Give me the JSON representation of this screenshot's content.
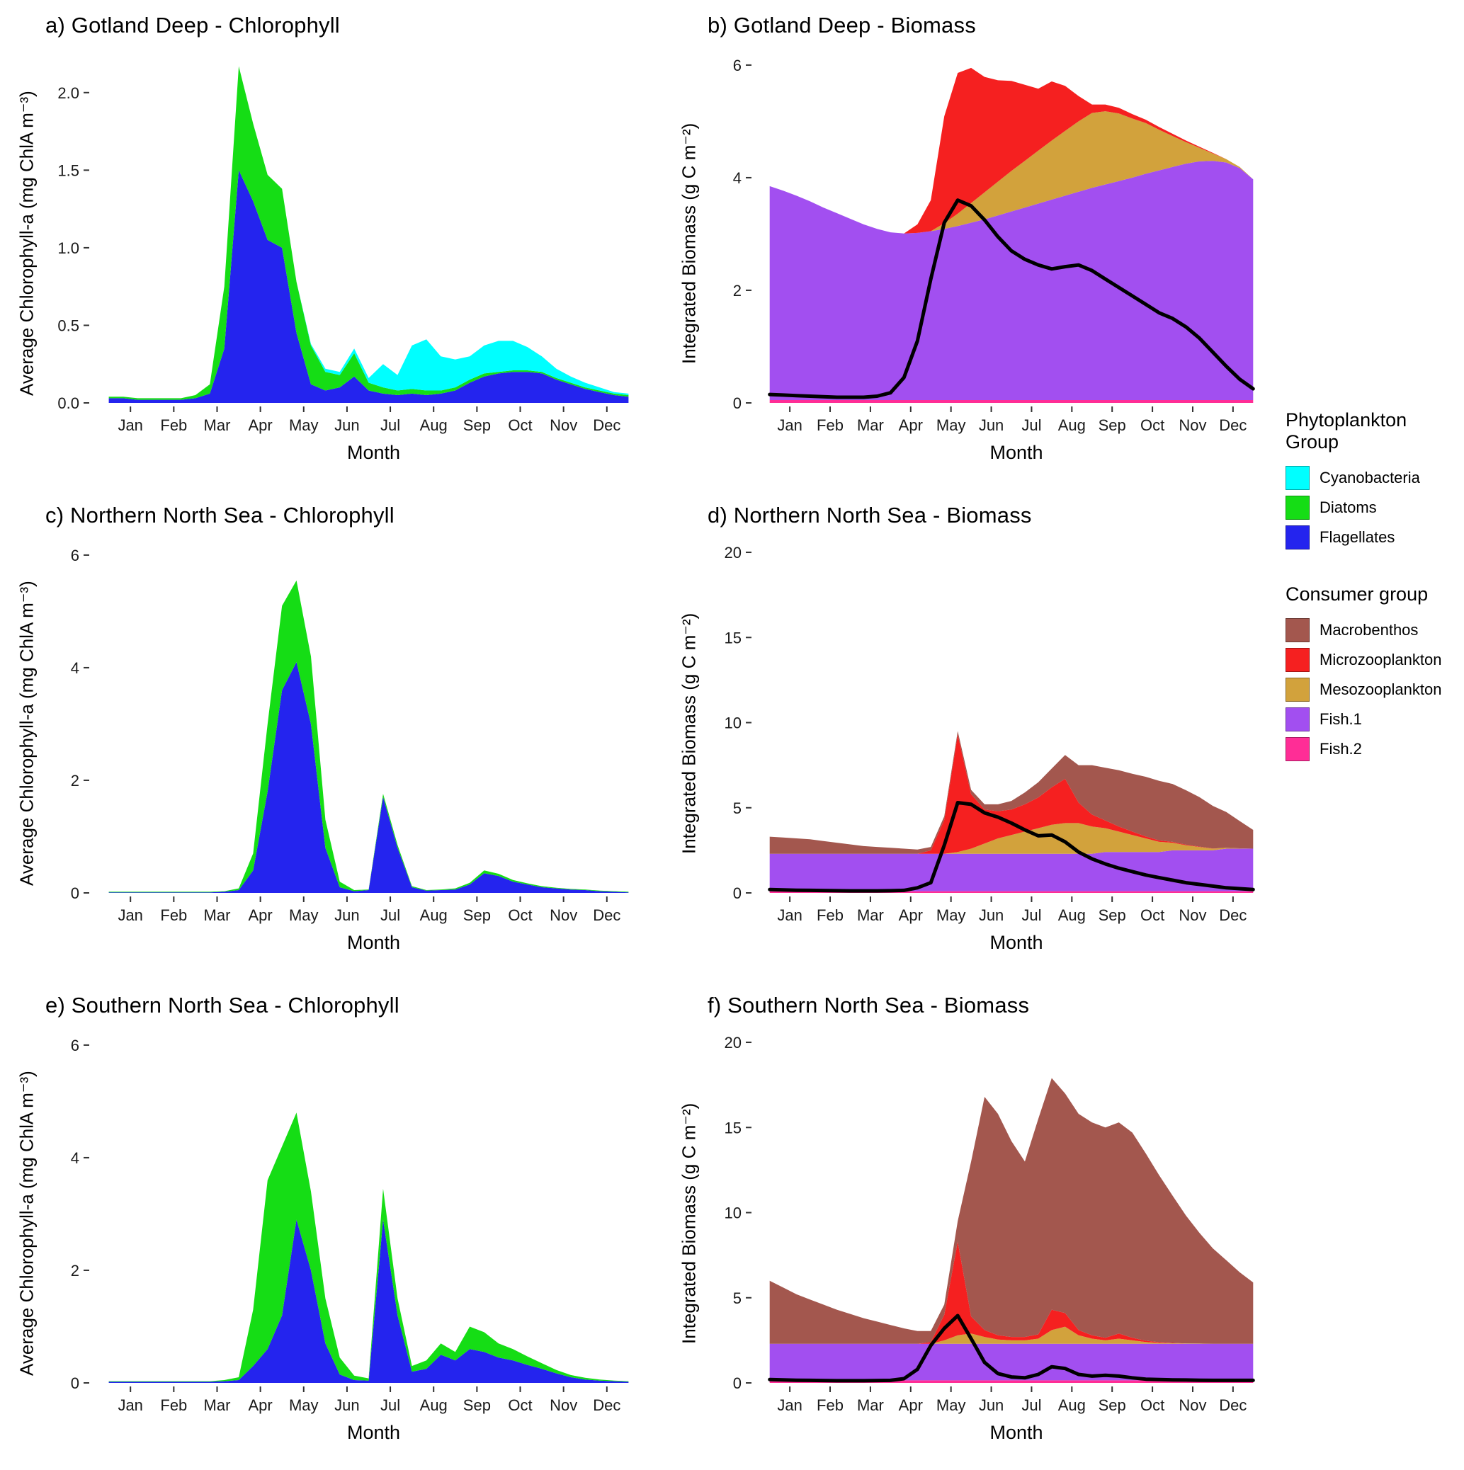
{
  "xlabel": "Month",
  "months": [
    "Jan",
    "Feb",
    "Mar",
    "Apr",
    "May",
    "Jun",
    "Jul",
    "Aug",
    "Sep",
    "Oct",
    "Nov",
    "Dec"
  ],
  "legend": {
    "phyto_title": "Phytoplankton Group",
    "phyto_items": [
      {
        "label": "Cyanobacteria",
        "color": "#00ffff"
      },
      {
        "label": "Diatoms",
        "color": "#15dd15"
      },
      {
        "label": "Flagellates",
        "color": "#2424ee"
      }
    ],
    "consumer_title": "Consumer group",
    "consumer_items": [
      {
        "label": "Macrobenthos",
        "color": "#a3574e"
      },
      {
        "label": "Microzooplankton",
        "color": "#f52020"
      },
      {
        "label": "Mesozooplankton",
        "color": "#d2a23c"
      },
      {
        "label": "Fish.1",
        "color": "#a24ff0"
      },
      {
        "label": "Fish.2",
        "color": "#ff2d96"
      }
    ]
  },
  "chart_data": [
    {
      "id": "a",
      "type": "area",
      "title": "a) Gotland Deep - Chlorophyll",
      "ylabel": "Average Chlorophyll-a (mg ChlA m⁻³)",
      "n_points": 37,
      "x_range_months": [
        0,
        12
      ],
      "ymax": 2.25,
      "yticks": [
        0,
        0.5,
        1,
        1.5,
        2
      ],
      "ytick_labels": [
        "0.0",
        "0.5",
        "1.0",
        "1.5",
        "2.0"
      ],
      "series": [
        {
          "name": "Flagellates",
          "color": "#2424ee",
          "values": [
            0.03,
            0.03,
            0.02,
            0.02,
            0.02,
            0.02,
            0.03,
            0.06,
            0.35,
            1.5,
            1.3,
            1.05,
            1.0,
            0.45,
            0.12,
            0.08,
            0.1,
            0.17,
            0.08,
            0.06,
            0.05,
            0.06,
            0.05,
            0.06,
            0.08,
            0.13,
            0.17,
            0.19,
            0.2,
            0.2,
            0.19,
            0.15,
            0.12,
            0.09,
            0.07,
            0.05,
            0.04
          ]
        },
        {
          "name": "Diatoms",
          "color": "#15dd15",
          "values": [
            0.01,
            0.01,
            0.01,
            0.01,
            0.01,
            0.01,
            0.02,
            0.06,
            0.4,
            0.67,
            0.5,
            0.42,
            0.38,
            0.33,
            0.25,
            0.12,
            0.08,
            0.15,
            0.05,
            0.04,
            0.03,
            0.03,
            0.03,
            0.02,
            0.02,
            0.02,
            0.02,
            0.01,
            0.01,
            0.01,
            0.01,
            0.01,
            0.01,
            0.01,
            0.01,
            0.01,
            0.01
          ]
        },
        {
          "name": "Cyanobacteria",
          "color": "#00ffff",
          "values": [
            0,
            0,
            0,
            0,
            0,
            0,
            0,
            0,
            0,
            0,
            0,
            0,
            0,
            0,
            0.01,
            0.02,
            0.02,
            0.03,
            0.03,
            0.15,
            0.1,
            0.28,
            0.33,
            0.22,
            0.18,
            0.15,
            0.18,
            0.2,
            0.19,
            0.15,
            0.1,
            0.06,
            0.04,
            0.03,
            0.02,
            0.01,
            0.01
          ]
        }
      ]
    },
    {
      "id": "b",
      "type": "area",
      "title": "b) Gotland Deep - Biomass",
      "ylabel": "Integrated Biomass (g C m⁻²)",
      "n_points": 37,
      "x_range_months": [
        0,
        12
      ],
      "ymax": 6.2,
      "yticks": [
        0,
        2,
        4,
        6
      ],
      "ytick_labels": [
        "0",
        "2",
        "4",
        "6"
      ],
      "series": [
        {
          "name": "Fish.2",
          "color": "#ff2d96",
          "values": 0.05
        },
        {
          "name": "Fish.1",
          "color": "#a24ff0",
          "values": [
            3.8,
            3.72,
            3.63,
            3.53,
            3.42,
            3.32,
            3.22,
            3.12,
            3.04,
            2.98,
            2.96,
            2.97,
            3.0,
            3.04,
            3.09,
            3.15,
            3.21,
            3.28,
            3.35,
            3.42,
            3.49,
            3.56,
            3.63,
            3.7,
            3.77,
            3.83,
            3.89,
            3.95,
            4.02,
            4.08,
            4.14,
            4.2,
            4.24,
            4.25,
            4.22,
            4.12,
            3.92
          ]
        },
        {
          "name": "Mesozooplankton",
          "color": "#d2a23c",
          "values": [
            0,
            0,
            0,
            0,
            0,
            0,
            0,
            0,
            0,
            0,
            0,
            0,
            0,
            0.1,
            0.22,
            0.35,
            0.48,
            0.6,
            0.72,
            0.83,
            0.94,
            1.05,
            1.15,
            1.25,
            1.33,
            1.3,
            1.2,
            1.05,
            0.9,
            0.72,
            0.55,
            0.38,
            0.24,
            0.13,
            0.06,
            0.02,
            0
          ]
        },
        {
          "name": "Microzooplankton",
          "color": "#f52020",
          "values": [
            0,
            0,
            0,
            0,
            0,
            0,
            0,
            0,
            0,
            0,
            0,
            0.15,
            0.55,
            1.9,
            2.5,
            2.4,
            2.05,
            1.8,
            1.6,
            1.35,
            1.1,
            1.05,
            0.8,
            0.45,
            0.15,
            0.12,
            0.1,
            0.08,
            0.06,
            0.05,
            0.04,
            0.03,
            0.02,
            0.01,
            0,
            0,
            0
          ]
        }
      ],
      "line": {
        "color": "#000000",
        "values": [
          0.15,
          0.14,
          0.13,
          0.12,
          0.11,
          0.1,
          0.1,
          0.1,
          0.12,
          0.18,
          0.45,
          1.1,
          2.2,
          3.2,
          3.6,
          3.5,
          3.25,
          2.95,
          2.7,
          2.55,
          2.45,
          2.38,
          2.42,
          2.45,
          2.35,
          2.2,
          2.05,
          1.9,
          1.75,
          1.6,
          1.5,
          1.35,
          1.15,
          0.9,
          0.65,
          0.42,
          0.25
        ]
      }
    },
    {
      "id": "c",
      "type": "area",
      "title": "c) Northern North Sea - Chlorophyll",
      "ylabel": "Average Chlorophyll-a (mg ChlA m⁻³)",
      "n_points": 37,
      "x_range_months": [
        0,
        12
      ],
      "ymax": 6.2,
      "yticks": [
        0,
        2,
        4,
        6
      ],
      "ytick_labels": [
        "0",
        "2",
        "4",
        "6"
      ],
      "series": [
        {
          "name": "Flagellates",
          "color": "#2424ee",
          "values": [
            0.01,
            0.01,
            0.01,
            0.01,
            0.01,
            0.01,
            0.01,
            0.01,
            0.02,
            0.05,
            0.4,
            1.8,
            3.6,
            4.1,
            3.0,
            0.8,
            0.1,
            0.03,
            0.05,
            1.7,
            0.8,
            0.1,
            0.04,
            0.05,
            0.06,
            0.15,
            0.35,
            0.3,
            0.2,
            0.15,
            0.1,
            0.08,
            0.06,
            0.05,
            0.03,
            0.02,
            0.01
          ]
        },
        {
          "name": "Diatoms",
          "color": "#15dd15",
          "values": [
            0.01,
            0.01,
            0.01,
            0.01,
            0.01,
            0.01,
            0.01,
            0.01,
            0.01,
            0.03,
            0.3,
            1.2,
            1.5,
            1.45,
            1.2,
            0.5,
            0.1,
            0.02,
            0.01,
            0.06,
            0.05,
            0.02,
            0.01,
            0.01,
            0.02,
            0.03,
            0.05,
            0.04,
            0.03,
            0.02,
            0.02,
            0.01,
            0.01,
            0.01,
            0.01,
            0.01,
            0.01
          ]
        },
        {
          "name": "Cyanobacteria",
          "color": "#00ffff",
          "values": 0
        }
      ]
    },
    {
      "id": "d",
      "type": "area",
      "title": "d) Northern North Sea - Biomass",
      "ylabel": "Integrated Biomass (g C m⁻²)",
      "n_points": 37,
      "x_range_months": [
        0,
        12
      ],
      "ymax": 20.5,
      "yticks": [
        0,
        5,
        10,
        15,
        20
      ],
      "ytick_labels": [
        "0",
        "5",
        "10",
        "15",
        "20"
      ],
      "series": [
        {
          "name": "Fish.2",
          "color": "#ff2d96",
          "values": 0.1
        },
        {
          "name": "Fish.1",
          "color": "#a24ff0",
          "values": [
            2.2,
            2.2,
            2.2,
            2.2,
            2.2,
            2.2,
            2.2,
            2.2,
            2.2,
            2.2,
            2.2,
            2.2,
            2.2,
            2.2,
            2.2,
            2.2,
            2.2,
            2.2,
            2.2,
            2.2,
            2.2,
            2.2,
            2.2,
            2.2,
            2.2,
            2.3,
            2.3,
            2.3,
            2.3,
            2.3,
            2.4,
            2.4,
            2.4,
            2.4,
            2.5,
            2.5,
            2.5
          ]
        },
        {
          "name": "Mesozooplankton",
          "color": "#d2a23c",
          "values": [
            0,
            0,
            0,
            0,
            0,
            0,
            0,
            0,
            0,
            0,
            0,
            0,
            0,
            0,
            0.1,
            0.3,
            0.6,
            0.9,
            1.1,
            1.3,
            1.5,
            1.7,
            1.8,
            1.8,
            1.6,
            1.4,
            1.2,
            1.0,
            0.8,
            0.6,
            0.45,
            0.3,
            0.2,
            0.1,
            0.05,
            0.02,
            0
          ]
        },
        {
          "name": "Microzooplankton",
          "color": "#f52020",
          "values": [
            0,
            0,
            0,
            0,
            0,
            0,
            0,
            0,
            0,
            0,
            0,
            0,
            0.2,
            2.0,
            6.9,
            3.2,
            2.0,
            1.6,
            1.5,
            1.6,
            1.8,
            2.2,
            2.6,
            1.2,
            0.7,
            0.45,
            0.3,
            0.2,
            0.12,
            0.08,
            0.05,
            0.03,
            0.02,
            0.01,
            0,
            0,
            0
          ]
        },
        {
          "name": "Macrobenthos",
          "color": "#a3574e",
          "values": [
            1.0,
            0.95,
            0.9,
            0.85,
            0.75,
            0.65,
            0.55,
            0.45,
            0.4,
            0.35,
            0.3,
            0.25,
            0.2,
            0.2,
            0.2,
            0.25,
            0.3,
            0.4,
            0.5,
            0.7,
            0.9,
            1.1,
            1.4,
            2.2,
            2.9,
            3.1,
            3.3,
            3.4,
            3.5,
            3.5,
            3.4,
            3.2,
            2.9,
            2.5,
            2.1,
            1.6,
            1.1
          ]
        }
      ],
      "line": {
        "color": "#000000",
        "values": [
          0.2,
          0.18,
          0.16,
          0.15,
          0.14,
          0.13,
          0.12,
          0.12,
          0.12,
          0.13,
          0.15,
          0.3,
          0.6,
          2.8,
          5.3,
          5.2,
          4.7,
          4.45,
          4.1,
          3.7,
          3.35,
          3.4,
          3.0,
          2.4,
          2.0,
          1.7,
          1.45,
          1.25,
          1.05,
          0.9,
          0.75,
          0.6,
          0.5,
          0.4,
          0.3,
          0.25,
          0.2
        ]
      }
    },
    {
      "id": "e",
      "type": "area",
      "title": "e) Southern North Sea - Chlorophyll",
      "ylabel": "Average Chlorophyll-a (mg ChlA m⁻³)",
      "n_points": 37,
      "x_range_months": [
        0,
        12
      ],
      "ymax": 6.2,
      "yticks": [
        0,
        2,
        4,
        6
      ],
      "ytick_labels": [
        "0",
        "2",
        "4",
        "6"
      ],
      "series": [
        {
          "name": "Flagellates",
          "color": "#2424ee",
          "values": [
            0.02,
            0.02,
            0.02,
            0.02,
            0.02,
            0.02,
            0.02,
            0.02,
            0.03,
            0.05,
            0.3,
            0.6,
            1.2,
            2.9,
            2.0,
            0.7,
            0.15,
            0.05,
            0.04,
            2.9,
            1.2,
            0.2,
            0.25,
            0.5,
            0.4,
            0.6,
            0.55,
            0.45,
            0.4,
            0.32,
            0.25,
            0.17,
            0.1,
            0.06,
            0.04,
            0.03,
            0.02
          ]
        },
        {
          "name": "Diatoms",
          "color": "#15dd15",
          "values": [
            0.01,
            0.01,
            0.01,
            0.01,
            0.01,
            0.01,
            0.01,
            0.01,
            0.02,
            0.05,
            1.0,
            3.0,
            3.0,
            1.9,
            1.4,
            0.8,
            0.3,
            0.08,
            0.04,
            0.55,
            0.3,
            0.1,
            0.15,
            0.2,
            0.15,
            0.4,
            0.35,
            0.25,
            0.2,
            0.15,
            0.1,
            0.06,
            0.04,
            0.03,
            0.02,
            0.01,
            0.01
          ]
        },
        {
          "name": "Cyanobacteria",
          "color": "#00ffff",
          "values": 0
        }
      ]
    },
    {
      "id": "f",
      "type": "area",
      "title": "f) Southern North Sea - Biomass",
      "ylabel": "Integrated Biomass (g C m⁻²)",
      "n_points": 37,
      "x_range_months": [
        0,
        12
      ],
      "ymax": 20.5,
      "yticks": [
        0,
        5,
        10,
        15,
        20
      ],
      "ytick_labels": [
        "0",
        "5",
        "10",
        "15",
        "20"
      ],
      "series": [
        {
          "name": "Fish.2",
          "color": "#ff2d96",
          "values": 0.15
        },
        {
          "name": "Fish.1",
          "color": "#a24ff0",
          "values": 2.15
        },
        {
          "name": "Mesozooplankton",
          "color": "#d2a23c",
          "values": [
            0,
            0,
            0,
            0,
            0,
            0,
            0,
            0,
            0,
            0,
            0,
            0,
            0,
            0.2,
            0.5,
            0.6,
            0.4,
            0.25,
            0.2,
            0.2,
            0.3,
            0.8,
            1.0,
            0.5,
            0.3,
            0.2,
            0.3,
            0.2,
            0.1,
            0.05,
            0.03,
            0.02,
            0.01,
            0,
            0,
            0,
            0
          ]
        },
        {
          "name": "Microzooplankton",
          "color": "#f52020",
          "values": [
            0,
            0,
            0,
            0,
            0,
            0,
            0,
            0,
            0,
            0,
            0,
            0,
            0.1,
            1.5,
            5.5,
            1.0,
            0.4,
            0.25,
            0.2,
            0.2,
            0.25,
            1.2,
            0.8,
            0.3,
            0.2,
            0.15,
            0.3,
            0.15,
            0.08,
            0.04,
            0.02,
            0,
            0,
            0,
            0,
            0,
            0
          ]
        },
        {
          "name": "Macrobenthos",
          "color": "#a3574e",
          "values": [
            3.7,
            3.3,
            2.9,
            2.6,
            2.3,
            2.0,
            1.75,
            1.5,
            1.3,
            1.1,
            0.9,
            0.75,
            0.65,
            0.6,
            1.2,
            9.1,
            13.7,
            13.0,
            11.5,
            10.3,
            12.65,
            13.6,
            12.9,
            12.7,
            12.5,
            12.35,
            12.4,
            12.05,
            11.0,
            9.8,
            8.65,
            7.5,
            6.5,
            5.6,
            4.9,
            4.2,
            3.6
          ]
        }
      ],
      "line": {
        "color": "#000000",
        "values": [
          0.2,
          0.18,
          0.16,
          0.15,
          0.14,
          0.13,
          0.13,
          0.13,
          0.14,
          0.15,
          0.25,
          0.8,
          2.2,
          3.2,
          3.95,
          2.6,
          1.2,
          0.55,
          0.35,
          0.3,
          0.5,
          0.95,
          0.85,
          0.5,
          0.4,
          0.45,
          0.4,
          0.3,
          0.22,
          0.2,
          0.18,
          0.17,
          0.16,
          0.15,
          0.15,
          0.15,
          0.15
        ]
      }
    }
  ]
}
